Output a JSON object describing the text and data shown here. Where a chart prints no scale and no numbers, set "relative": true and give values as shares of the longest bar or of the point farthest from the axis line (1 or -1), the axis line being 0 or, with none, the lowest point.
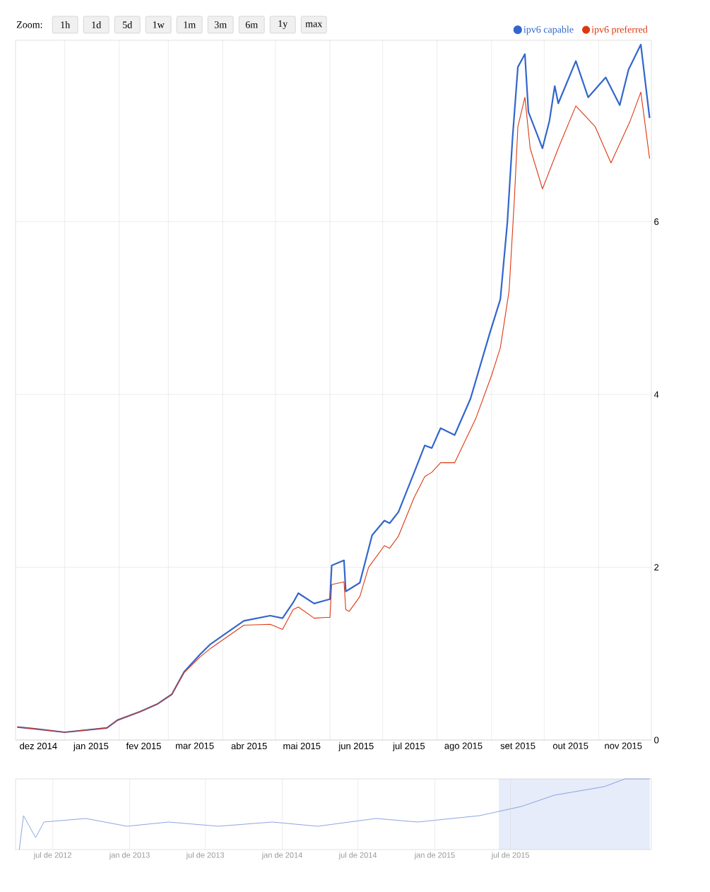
{
  "chart_data": [
    {
      "type": "line",
      "xlim": [
        "2014-12-04",
        "2015-12-01"
      ],
      "ylim": [
        0,
        8.1
      ],
      "yticks": [
        0,
        2,
        4,
        6
      ],
      "xticks": [
        {
          "value": "2015-01-01",
          "label": null
        },
        {
          "value": "2015-02-01",
          "label": null
        },
        {
          "value": "2015-03-01",
          "label": null
        },
        {
          "value": "2015-04-01",
          "label": null
        },
        {
          "value": "2015-05-01",
          "label": null
        },
        {
          "value": "2015-06-01",
          "label": null
        },
        {
          "value": "2015-07-01",
          "label": null
        },
        {
          "value": "2015-08-01",
          "label": null
        },
        {
          "value": "2015-09-01",
          "label": null
        },
        {
          "value": "2015-10-01",
          "label": null
        },
        {
          "value": "2015-11-01",
          "label": null
        },
        {
          "value": "2014-12-17",
          "label": "dez 2014"
        },
        {
          "value": "2015-01-16",
          "label": "jan 2015"
        },
        {
          "value": "2015-02-15",
          "label": "fev 2015"
        },
        {
          "value": "2015-03-16",
          "label": "mar 2015"
        },
        {
          "value": "2015-04-16",
          "label": "abr 2015"
        },
        {
          "value": "2015-05-16",
          "label": "mai 2015"
        },
        {
          "value": "2015-06-16",
          "label": "jun 2015"
        },
        {
          "value": "2015-07-16",
          "label": "jul 2015"
        },
        {
          "value": "2015-08-16",
          "label": "ago 2015"
        },
        {
          "value": "2015-09-16",
          "label": "set 2015"
        },
        {
          "value": "2015-10-16",
          "label": "out 2015"
        },
        {
          "value": "2015-11-15",
          "label": "nov 2015"
        }
      ],
      "grid": true,
      "legend": "top right",
      "annotations": [
        "Zoom:",
        "1h",
        "1d",
        "5d",
        "1w",
        "1m",
        "3m",
        "6m",
        "1y",
        "max"
      ],
      "series": [
        {
          "name": "ipv6 capable",
          "color": "#3366cc",
          "x": [
            "2014-12-05",
            "2014-12-15",
            "2015-01-01",
            "2015-01-25",
            "2015-01-31",
            "2015-02-13",
            "2015-02-23",
            "2015-03-03",
            "2015-03-10",
            "2015-03-19",
            "2015-03-25",
            "2015-04-01",
            "2015-04-13",
            "2015-04-28",
            "2015-05-05",
            "2015-05-11",
            "2015-05-14",
            "2015-05-23",
            "2015-05-30",
            "2015-06-01",
            "2015-06-02",
            "2015-06-09",
            "2015-06-10",
            "2015-06-18",
            "2015-06-25",
            "2015-07-02",
            "2015-07-05",
            "2015-07-10",
            "2015-07-19",
            "2015-07-25",
            "2015-07-29",
            "2015-08-03",
            "2015-08-11",
            "2015-08-20",
            "2015-08-31",
            "2015-09-06",
            "2015-09-10",
            "2015-09-13",
            "2015-09-16",
            "2015-09-20",
            "2015-09-22",
            "2015-09-30",
            "2015-10-04",
            "2015-10-07",
            "2015-10-09",
            "2015-10-19",
            "2015-10-26",
            "2015-11-05",
            "2015-11-13",
            "2015-11-18",
            "2015-11-25",
            "2015-11-30"
          ],
          "values": [
            0.15,
            0.13,
            0.09,
            0.14,
            0.23,
            0.33,
            0.42,
            0.53,
            0.79,
            0.99,
            1.11,
            1.21,
            1.38,
            1.44,
            1.41,
            1.59,
            1.7,
            1.58,
            1.62,
            1.63,
            2.02,
            2.08,
            1.72,
            1.82,
            2.37,
            2.54,
            2.51,
            2.64,
            3.1,
            3.41,
            3.38,
            3.61,
            3.53,
            3.95,
            4.71,
            5.1,
            5.99,
            6.98,
            7.79,
            7.94,
            7.27,
            6.85,
            7.17,
            7.57,
            7.37,
            7.86,
            7.44,
            7.67,
            7.35,
            7.76,
            8.05,
            7.2
          ]
        },
        {
          "name": "ipv6 preferred",
          "color": "#dc3912",
          "x": [
            "2014-12-05",
            "2014-12-15",
            "2015-01-01",
            "2015-01-25",
            "2015-01-31",
            "2015-02-13",
            "2015-02-23",
            "2015-03-03",
            "2015-03-10",
            "2015-03-19",
            "2015-03-25",
            "2015-04-01",
            "2015-04-13",
            "2015-04-28",
            "2015-05-05",
            "2015-05-11",
            "2015-05-14",
            "2015-05-23",
            "2015-05-30",
            "2015-06-01",
            "2015-06-02",
            "2015-06-09",
            "2015-06-10",
            "2015-06-12",
            "2015-06-18",
            "2015-06-23",
            "2015-07-02",
            "2015-07-05",
            "2015-07-10",
            "2015-07-19",
            "2015-07-25",
            "2015-07-29",
            "2015-08-03",
            "2015-08-11",
            "2015-08-23",
            "2015-09-01",
            "2015-09-06",
            "2015-09-11",
            "2015-09-14",
            "2015-09-16",
            "2015-09-20",
            "2015-09-23",
            "2015-09-30",
            "2015-10-09",
            "2015-10-19",
            "2015-10-30",
            "2015-11-08",
            "2015-11-19",
            "2015-11-25",
            "2015-11-30"
          ],
          "values": [
            0.15,
            0.13,
            0.09,
            0.14,
            0.23,
            0.33,
            0.42,
            0.53,
            0.78,
            0.96,
            1.06,
            1.16,
            1.33,
            1.34,
            1.28,
            1.51,
            1.54,
            1.41,
            1.42,
            1.42,
            1.8,
            1.83,
            1.51,
            1.49,
            1.66,
            2.0,
            2.25,
            2.22,
            2.36,
            2.81,
            3.05,
            3.1,
            3.21,
            3.21,
            3.72,
            4.22,
            4.54,
            5.2,
            6.26,
            7.1,
            7.44,
            6.85,
            6.38,
            6.85,
            7.34,
            7.1,
            6.68,
            7.17,
            7.5,
            6.73
          ]
        }
      ]
    },
    {
      "type": "line",
      "relative": true,
      "xlim": [
        "2012-04-03",
        "2016-06-02"
      ],
      "grid": "x",
      "tick_labels": "x",
      "xticks": [
        {
          "value": "2012-07-01",
          "label": "jul de 2012"
        },
        {
          "value": "2013-01-01",
          "label": "jan de 2013"
        },
        {
          "value": "2013-07-01",
          "label": "jul de 2013"
        },
        {
          "value": "2014-01-01",
          "label": "jan de 2014"
        },
        {
          "value": "2014-07-01",
          "label": "jul de 2014"
        },
        {
          "value": "2015-01-01",
          "label": "jan de 2015"
        },
        {
          "value": "2015-07-01",
          "label": "jul de 2015"
        }
      ],
      "bands": [
        {
          "axis": "x",
          "from": "2015-06-03",
          "to": "2016-05-29",
          "color": "#e6ecf9"
        }
      ],
      "series": [
        {
          "color": "#7d9be0",
          "x": [
            "2012-04-12",
            "2012-04-22",
            "2012-05-21",
            "2012-06-10",
            "2012-09-18",
            "2012-12-26",
            "2013-04-04",
            "2013-08-01",
            "2013-12-08",
            "2014-03-27",
            "2014-08-13",
            "2014-11-21",
            "2015-04-18",
            "2015-07-27",
            "2015-10-14",
            "2016-02-10",
            "2016-03-31",
            "2016-05-29"
          ],
          "values": [
            0,
            0.48,
            0.17,
            0.39,
            0.44,
            0.33,
            0.39,
            0.33,
            0.39,
            0.33,
            0.44,
            0.39,
            0.48,
            0.61,
            0.77,
            0.89,
            1,
            1
          ]
        }
      ]
    }
  ]
}
